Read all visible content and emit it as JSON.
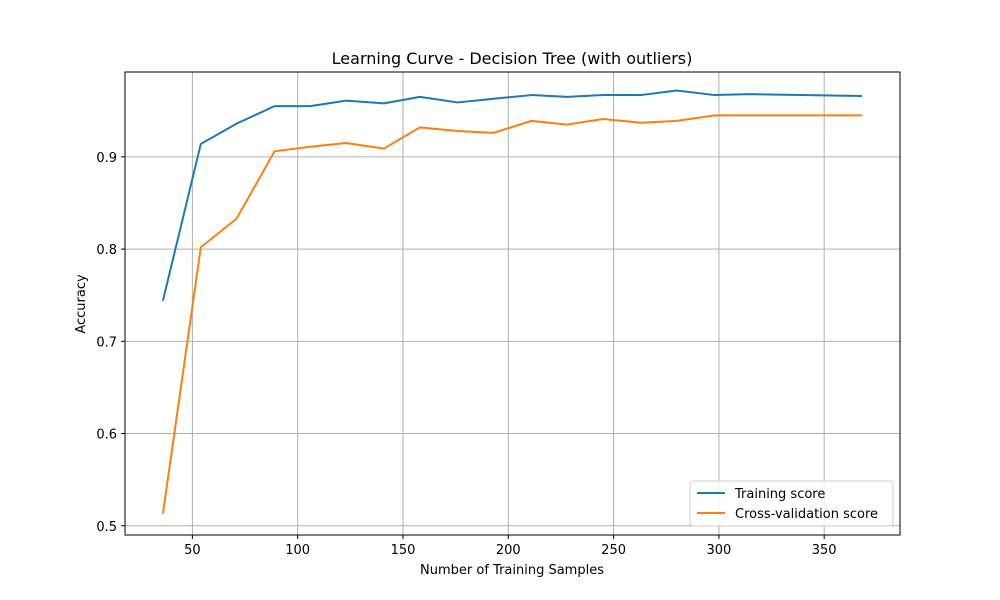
{
  "chart_data": {
    "type": "line",
    "title": "Learning Curve - Decision Tree (with outliers)",
    "xlabel": "Number of Training Samples",
    "ylabel": "Accuracy",
    "xlim": [
      18,
      386
    ],
    "ylim": [
      0.49,
      0.992
    ],
    "xticks": [
      50,
      100,
      150,
      200,
      250,
      300,
      350
    ],
    "yticks": [
      0.5,
      0.6,
      0.7,
      0.8,
      0.9
    ],
    "grid": true,
    "legend_position": "lower right",
    "x": [
      36,
      54,
      71,
      89,
      106,
      123,
      141,
      158,
      176,
      193,
      211,
      228,
      245,
      263,
      280,
      298,
      315,
      368
    ],
    "series": [
      {
        "name": "Training score",
        "color": "#1f77b4",
        "values": [
          0.744,
          0.914,
          0.936,
          0.955,
          0.955,
          0.961,
          0.958,
          0.965,
          0.959,
          0.963,
          0.967,
          0.965,
          0.967,
          0.967,
          0.972,
          0.967,
          0.968,
          0.966
        ]
      },
      {
        "name": "Cross-validation score",
        "color": "#ff7f0e",
        "values": [
          0.513,
          0.802,
          0.833,
          0.906,
          0.911,
          0.915,
          0.909,
          0.932,
          0.928,
          0.926,
          0.939,
          0.935,
          0.941,
          0.937,
          0.939,
          0.945,
          0.945,
          0.945
        ]
      }
    ]
  }
}
